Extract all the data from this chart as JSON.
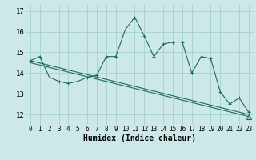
{
  "xlabel": "Humidex (Indice chaleur)",
  "bg_color": "#cce8e8",
  "line_color": "#1a6b5a",
  "grid_color": "#a0cccc",
  "xlim": [
    -0.5,
    23.5
  ],
  "ylim": [
    11.5,
    17.3
  ],
  "yticks": [
    12,
    13,
    14,
    15,
    16,
    17
  ],
  "xticks": [
    0,
    1,
    2,
    3,
    4,
    5,
    6,
    7,
    8,
    9,
    10,
    11,
    12,
    13,
    14,
    15,
    16,
    17,
    18,
    19,
    20,
    21,
    22,
    23
  ],
  "curve1_x": [
    0,
    1,
    2,
    3,
    4,
    5,
    6,
    7,
    8,
    9,
    10,
    11,
    12,
    13,
    14,
    15,
    16,
    17,
    18,
    19,
    20,
    21,
    22,
    23
  ],
  "curve1_y": [
    14.6,
    14.8,
    13.8,
    13.6,
    13.5,
    13.6,
    13.8,
    13.9,
    14.8,
    14.8,
    16.1,
    16.7,
    15.8,
    14.8,
    15.4,
    15.5,
    15.5,
    14.0,
    14.8,
    14.7,
    13.1,
    12.5,
    12.8,
    12.1
  ],
  "curve2_x": [
    0,
    23
  ],
  "curve2_y": [
    14.6,
    12.0
  ],
  "curve3_x": [
    0,
    23
  ],
  "curve3_y": [
    14.5,
    11.9
  ],
  "marker_indices": [
    0,
    1,
    2,
    3,
    4,
    5,
    6,
    7,
    8,
    9,
    10,
    11,
    12,
    13,
    14,
    15,
    16,
    17,
    18,
    19,
    20,
    21,
    22,
    23
  ],
  "triangle_x": 23,
  "triangle_y": 11.9
}
